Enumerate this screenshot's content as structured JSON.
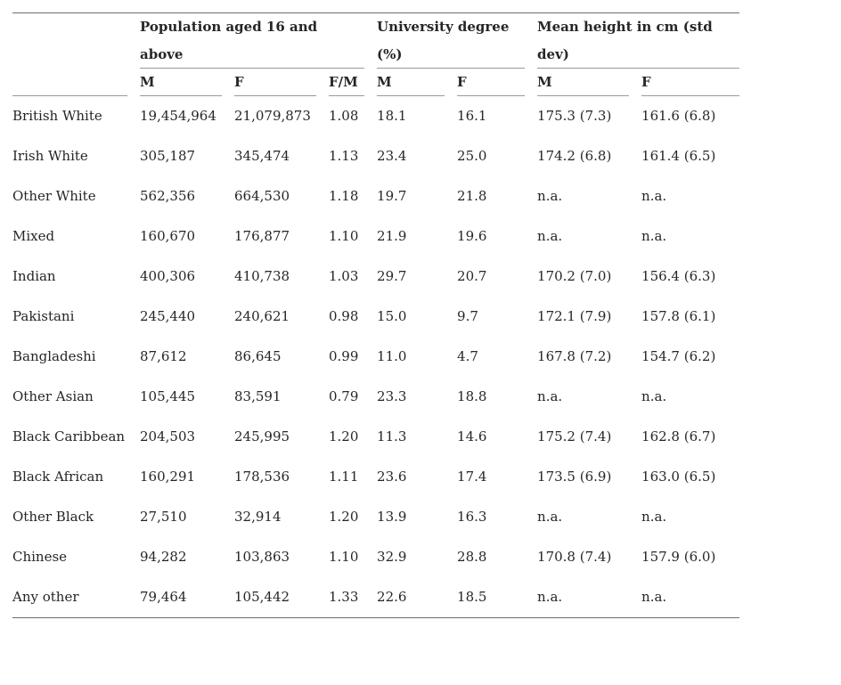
{
  "table": {
    "column_groups": [
      {
        "label": "Population aged 16 and\nabove",
        "span": 3
      },
      {
        "label": "University degree\n(%)",
        "span": 2
      },
      {
        "label": "Mean height in cm (std\ndev)",
        "span": 2
      }
    ],
    "sub_headers": [
      "M",
      "F",
      "F/M",
      "M",
      "F",
      "M",
      "F"
    ],
    "rows": [
      {
        "label": "British White",
        "values": [
          "19,454,964",
          "21,079,873",
          "1.08",
          "18.1",
          "16.1",
          "175.3 (7.3)",
          "161.6 (6.8)"
        ]
      },
      {
        "label": "Irish White",
        "values": [
          "305,187",
          "345,474",
          "1.13",
          "23.4",
          "25.0",
          "174.2 (6.8)",
          "161.4 (6.5)"
        ]
      },
      {
        "label": "Other White",
        "values": [
          "562,356",
          "664,530",
          "1.18",
          "19.7",
          "21.8",
          "n.a.",
          "n.a."
        ]
      },
      {
        "label": "Mixed",
        "values": [
          "160,670",
          "176,877",
          "1.10",
          "21.9",
          "19.6",
          "n.a.",
          "n.a."
        ]
      },
      {
        "label": "Indian",
        "values": [
          "400,306",
          "410,738",
          "1.03",
          "29.7",
          "20.7",
          "170.2 (7.0)",
          "156.4 (6.3)"
        ]
      },
      {
        "label": "Pakistani",
        "values": [
          "245,440",
          "240,621",
          "0.98",
          "15.0",
          "9.7",
          "172.1 (7.9)",
          "157.8 (6.1)"
        ]
      },
      {
        "label": "Bangladeshi",
        "values": [
          "87,612",
          "86,645",
          "0.99",
          "11.0",
          "4.7",
          "167.8 (7.2)",
          "154.7 (6.2)"
        ]
      },
      {
        "label": "Other Asian",
        "values": [
          "105,445",
          "83,591",
          "0.79",
          "23.3",
          "18.8",
          "n.a.",
          "n.a."
        ]
      },
      {
        "label": "Black Caribbean",
        "values": [
          "204,503",
          "245,995",
          "1.20",
          "11.3",
          "14.6",
          "175.2 (7.4)",
          "162.8 (6.7)"
        ]
      },
      {
        "label": "Black African",
        "values": [
          "160,291",
          "178,536",
          "1.11",
          "23.6",
          "17.4",
          "173.5 (6.9)",
          "163.0 (6.5)"
        ]
      },
      {
        "label": "Other Black",
        "values": [
          "27,510",
          "32,914",
          "1.20",
          "13.9",
          "16.3",
          "n.a.",
          "n.a."
        ]
      },
      {
        "label": "Chinese",
        "values": [
          "94,282",
          "103,863",
          "1.10",
          "32.9",
          "28.8",
          "170.8 (7.4)",
          "157.9 (6.0)"
        ]
      },
      {
        "label": "Any other",
        "values": [
          "79,464",
          "105,442",
          "1.33",
          "22.6",
          "18.5",
          "n.a.",
          "n.a."
        ]
      }
    ]
  },
  "colors": {
    "text": "#262626",
    "rule_inner": "#999999",
    "rule_outer": "#6e6e6e",
    "background": "#ffffff"
  }
}
